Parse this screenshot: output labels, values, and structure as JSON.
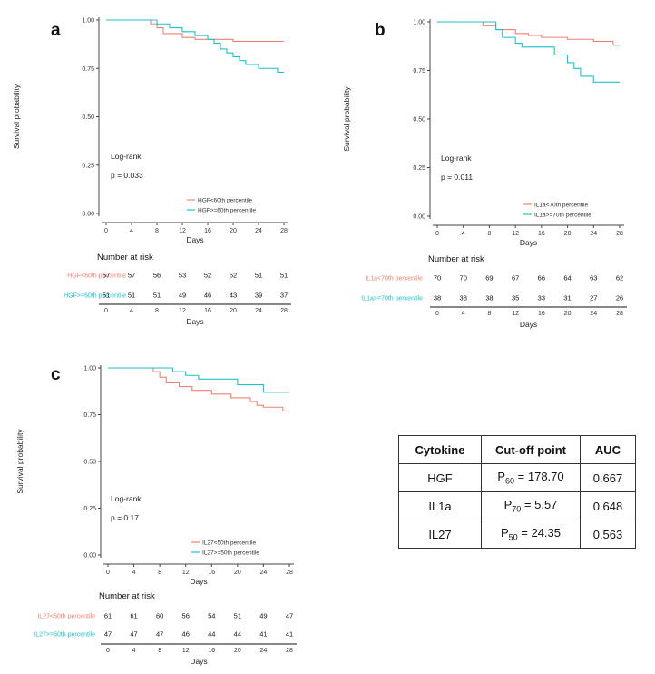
{
  "colors": {
    "group_low": "#f08272",
    "group_high": "#1fc0cc",
    "axis": "#444444"
  },
  "chart_data": [
    {
      "type": "line",
      "panel": "a",
      "title": "",
      "xlabel": "Days",
      "ylabel": "Survival probability",
      "xlim": [
        0,
        28
      ],
      "ylim": [
        0,
        1
      ],
      "xticks": [
        0,
        4,
        8,
        12,
        16,
        20,
        24,
        28
      ],
      "yticks": [
        "0.00",
        "0.25",
        "0.50",
        "0.75",
        "1.00"
      ],
      "annotation": "Log-rank",
      "pvalue": "p = 0.033",
      "series": [
        {
          "name": "HGF<60th percentile",
          "color": "#f08272",
          "steps": [
            [
              0,
              1.0
            ],
            [
              7,
              0.98
            ],
            [
              8,
              0.96
            ],
            [
              9,
              0.93
            ],
            [
              12,
              0.91
            ],
            [
              14,
              0.9
            ],
            [
              20,
              0.89
            ],
            [
              28,
              0.89
            ]
          ]
        },
        {
          "name": "HGF>=60th percentile",
          "color": "#1fc0cc",
          "steps": [
            [
              0,
              1.0
            ],
            [
              8,
              0.98
            ],
            [
              10,
              0.96
            ],
            [
              12,
              0.94
            ],
            [
              14,
              0.92
            ],
            [
              16,
              0.9
            ],
            [
              17,
              0.88
            ],
            [
              18,
              0.85
            ],
            [
              19,
              0.83
            ],
            [
              20,
              0.81
            ],
            [
              21,
              0.79
            ],
            [
              22,
              0.77
            ],
            [
              24,
              0.75
            ],
            [
              27,
              0.73
            ],
            [
              28,
              0.73
            ]
          ]
        }
      ],
      "risk_table": {
        "title": "Number at risk",
        "rows": [
          {
            "label": "HGF<60th percentile",
            "values": [
              "57",
              "57",
              "56",
              "53",
              "52",
              "52",
              "51",
              "51"
            ]
          },
          {
            "label": "HGF>=60th percentile",
            "values": [
              "51",
              "51",
              "51",
              "49",
              "46",
              "43",
              "39",
              "37"
            ]
          }
        ],
        "xticks": [
          0,
          4,
          8,
          12,
          16,
          20,
          24,
          28
        ],
        "xlabel": "Days"
      }
    },
    {
      "type": "line",
      "panel": "b",
      "title": "",
      "xlabel": "Days",
      "ylabel": "Survival probability",
      "xlim": [
        0,
        28
      ],
      "ylim": [
        0,
        1
      ],
      "xticks": [
        0,
        4,
        8,
        12,
        16,
        20,
        24,
        28
      ],
      "yticks": [
        "0.00",
        "0.25",
        "0.50",
        "0.75",
        "1.00"
      ],
      "annotation": "Log-rank",
      "pvalue": "p = 0.011",
      "series": [
        {
          "name": "IL1a<70th percentile",
          "color": "#f08272",
          "steps": [
            [
              0,
              1.0
            ],
            [
              7,
              0.98
            ],
            [
              9,
              0.96
            ],
            [
              12,
              0.94
            ],
            [
              14,
              0.93
            ],
            [
              16,
              0.92
            ],
            [
              20,
              0.91
            ],
            [
              24,
              0.9
            ],
            [
              27,
              0.88
            ],
            [
              28,
              0.88
            ]
          ]
        },
        {
          "name": "IL1a>=70th percentile",
          "color": "#1fc0cc",
          "steps": [
            [
              0,
              1.0
            ],
            [
              9,
              0.96
            ],
            [
              10,
              0.92
            ],
            [
              12,
              0.89
            ],
            [
              13,
              0.87
            ],
            [
              18,
              0.83
            ],
            [
              20,
              0.79
            ],
            [
              21,
              0.76
            ],
            [
              22,
              0.72
            ],
            [
              24,
              0.69
            ],
            [
              28,
              0.69
            ]
          ]
        }
      ],
      "risk_table": {
        "title": "Number at risk",
        "rows": [
          {
            "label": "IL1a<70th percentile",
            "values": [
              "70",
              "70",
              "69",
              "67",
              "66",
              "64",
              "63",
              "62"
            ]
          },
          {
            "label": "IL1a>=70th percentile",
            "values": [
              "38",
              "38",
              "38",
              "35",
              "33",
              "31",
              "27",
              "26"
            ]
          }
        ],
        "xticks": [
          0,
          4,
          8,
          12,
          16,
          20,
          24,
          28
        ],
        "xlabel": "Days"
      }
    },
    {
      "type": "line",
      "panel": "c",
      "title": "",
      "xlabel": "Days",
      "ylabel": "Survival probability",
      "xlim": [
        0,
        28
      ],
      "ylim": [
        0,
        1
      ],
      "xticks": [
        0,
        4,
        8,
        12,
        16,
        20,
        24,
        28
      ],
      "yticks": [
        "0.00",
        "0.25",
        "0.50",
        "0.75",
        "1.00"
      ],
      "annotation": "Log-rank",
      "pvalue": "p = 0.17",
      "series": [
        {
          "name": "IL27<50th percentile",
          "color": "#f08272",
          "steps": [
            [
              0,
              1.0
            ],
            [
              7,
              0.98
            ],
            [
              8,
              0.95
            ],
            [
              9,
              0.92
            ],
            [
              11,
              0.9
            ],
            [
              13,
              0.88
            ],
            [
              16,
              0.86
            ],
            [
              19,
              0.84
            ],
            [
              22,
              0.82
            ],
            [
              23,
              0.8
            ],
            [
              24,
              0.79
            ],
            [
              27,
              0.77
            ],
            [
              28,
              0.77
            ]
          ]
        },
        {
          "name": "IL27>=50th percentile",
          "color": "#1fc0cc",
          "steps": [
            [
              0,
              1.0
            ],
            [
              10,
              0.98
            ],
            [
              12,
              0.96
            ],
            [
              14,
              0.94
            ],
            [
              20,
              0.91
            ],
            [
              24,
              0.87
            ],
            [
              28,
              0.87
            ]
          ]
        }
      ],
      "risk_table": {
        "title": "Number at risk",
        "rows": [
          {
            "label": "IL27<50th percentile",
            "values": [
              "61",
              "61",
              "60",
              "56",
              "54",
              "51",
              "49",
              "47"
            ]
          },
          {
            "label": "IL27>=50th percentile",
            "values": [
              "47",
              "47",
              "47",
              "46",
              "44",
              "44",
              "41",
              "41"
            ]
          }
        ],
        "xticks": [
          0,
          4,
          8,
          12,
          16,
          20,
          24,
          28
        ],
        "xlabel": "Days"
      }
    }
  ],
  "table": {
    "headers": [
      "Cytokine",
      "Cut-off point",
      "AUC"
    ],
    "rows": [
      {
        "cytokine": "HGF",
        "p_prefix": "P",
        "p_sub": "60",
        "cutoff": " = 178.70",
        "auc": "0.667"
      },
      {
        "cytokine": "IL1a",
        "p_prefix": "P",
        "p_sub": "70",
        "cutoff": " = 5.57",
        "auc": "0.648"
      },
      {
        "cytokine": "IL27",
        "p_prefix": "P",
        "p_sub": "50",
        "cutoff": " = 24.35",
        "auc": "0.563"
      }
    ]
  }
}
